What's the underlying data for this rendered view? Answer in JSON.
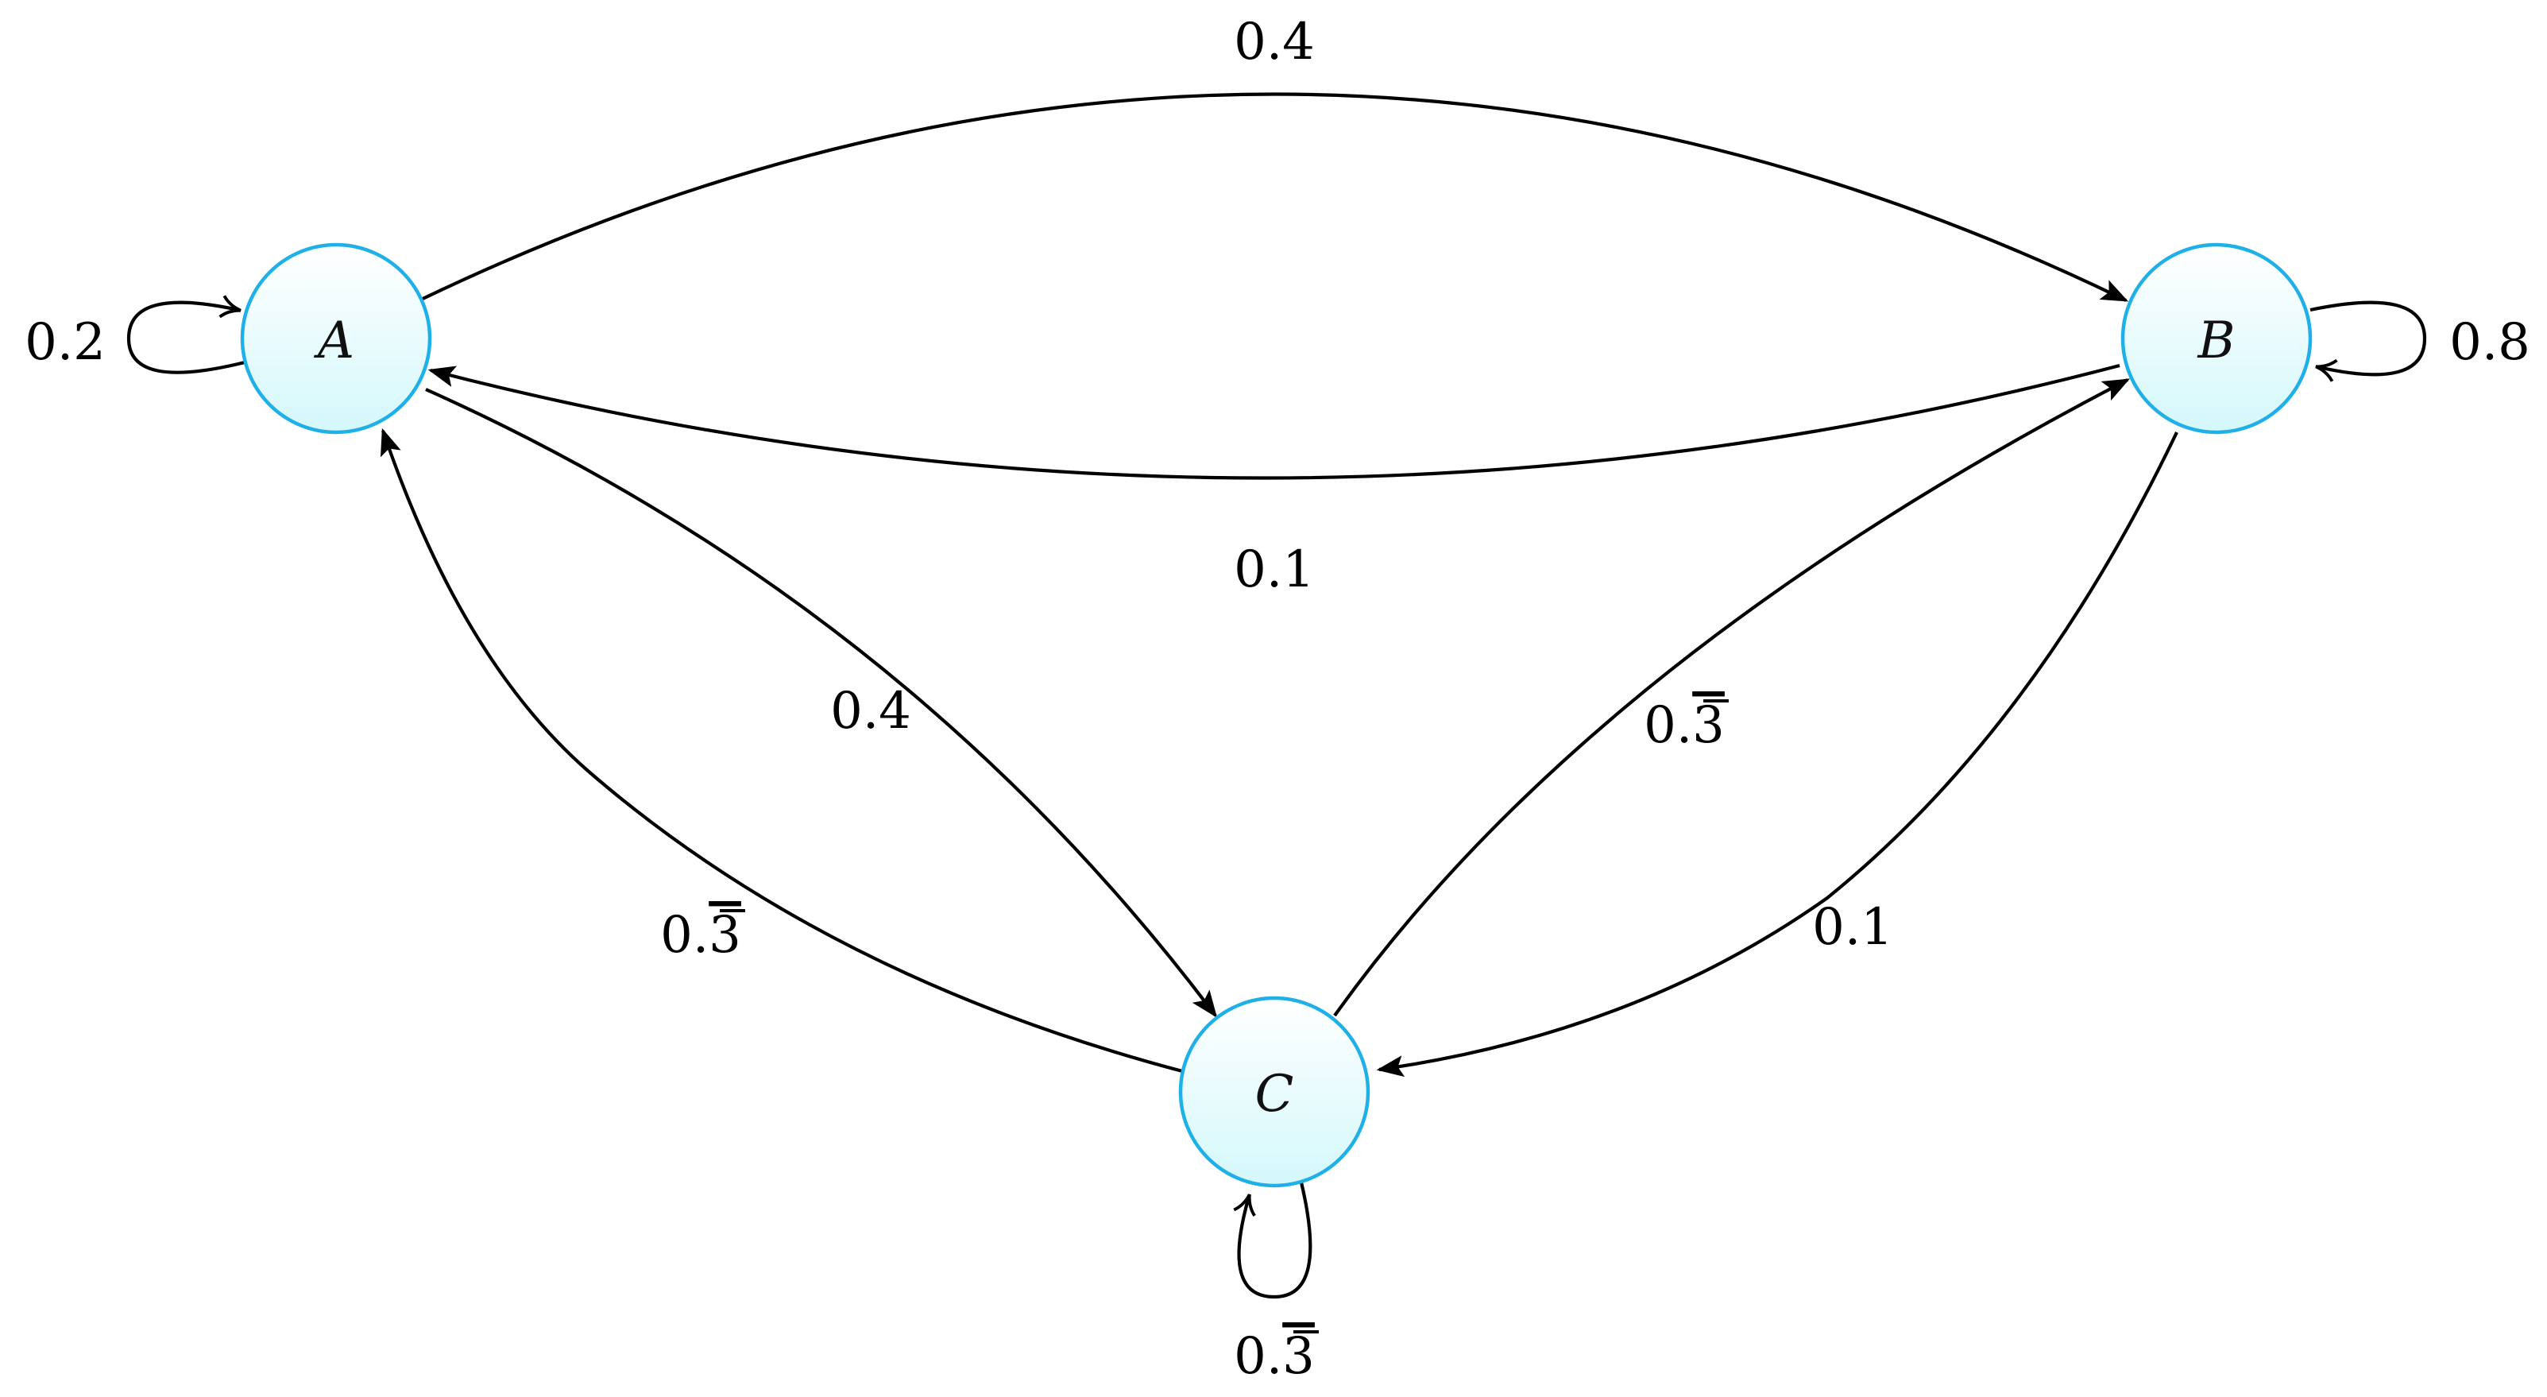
{
  "nodes": {
    "a": {
      "label": "A"
    },
    "b": {
      "label": "B"
    },
    "c": {
      "label": "C"
    }
  },
  "edges": {
    "a_to_b": {
      "from": "A",
      "to": "B",
      "label": "0.4"
    },
    "b_to_a": {
      "from": "B",
      "to": "A",
      "label": "0.1"
    },
    "a_to_c": {
      "from": "A",
      "to": "C",
      "label": "0.4"
    },
    "c_to_a": {
      "from": "C",
      "to": "A",
      "label_prefix": "0.",
      "label_repeating": "3"
    },
    "c_to_b": {
      "from": "C",
      "to": "B",
      "label_prefix": "0.",
      "label_repeating": "3"
    },
    "b_to_c": {
      "from": "B",
      "to": "C",
      "label": "0.1"
    },
    "a_to_a": {
      "from": "A",
      "to": "A",
      "label": "0.2"
    },
    "b_to_b": {
      "from": "B",
      "to": "B",
      "label": "0.8"
    },
    "c_to_c": {
      "from": "C",
      "to": "C",
      "label_prefix": "0.",
      "label_repeating": "3"
    }
  },
  "colors": {
    "node_border": "#1fb0e8",
    "node_fill_top": "#ffffff",
    "node_fill_bottom": "#d4f8fb",
    "edge": "#000000"
  }
}
